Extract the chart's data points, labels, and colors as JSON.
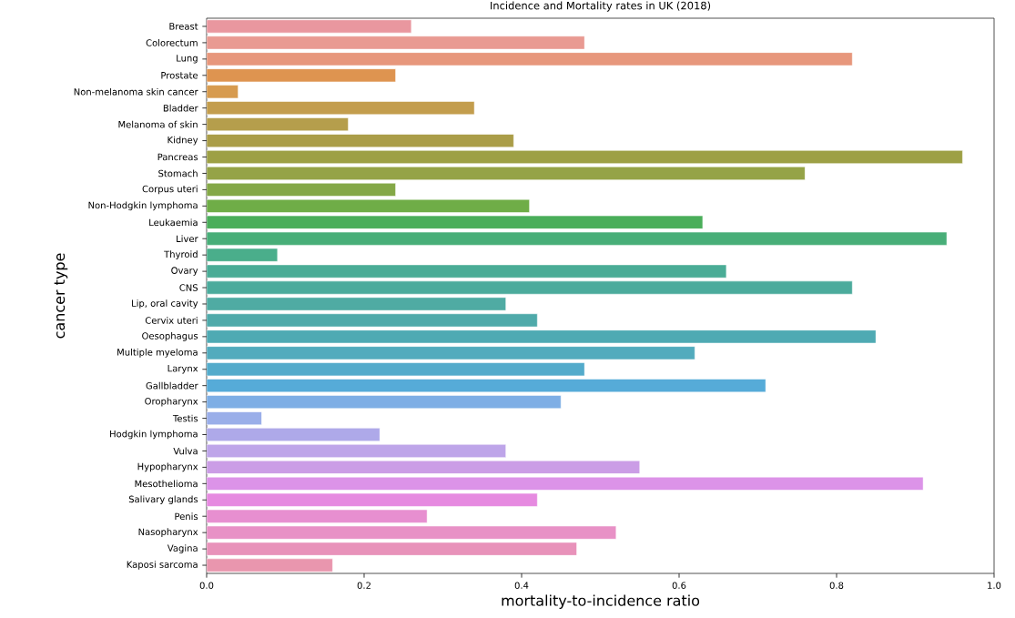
{
  "chart_data": {
    "type": "bar",
    "orientation": "horizontal",
    "title": "Incidence and Mortality rates in UK (2018)",
    "xlabel": "mortality-to-incidence ratio",
    "ylabel": "cancer type",
    "categories": [
      "Breast",
      "Colorectum",
      "Lung",
      "Prostate",
      "Non-melanoma skin cancer",
      "Bladder",
      "Melanoma of skin",
      "Kidney",
      "Pancreas",
      "Stomach",
      "Corpus uteri",
      "Non-Hodgkin lymphoma",
      "Leukaemia",
      "Liver",
      "Thyroid",
      "Ovary",
      "CNS",
      "Lip, oral cavity",
      "Cervix uteri",
      "Oesophagus",
      "Multiple myeloma",
      "Larynx",
      "Gallbladder",
      "Oropharynx",
      "Testis",
      "Hodgkin lymphoma",
      "Vulva",
      "Hypopharynx",
      "Mesothelioma",
      "Salivary glands",
      "Penis",
      "Nasopharynx",
      "Vagina",
      "Kaposi sarcoma"
    ],
    "values": [
      0.26,
      0.48,
      0.82,
      0.24,
      0.04,
      0.34,
      0.18,
      0.39,
      0.96,
      0.76,
      0.24,
      0.41,
      0.63,
      0.94,
      0.09,
      0.66,
      0.82,
      0.38,
      0.42,
      0.85,
      0.62,
      0.48,
      0.71,
      0.45,
      0.07,
      0.22,
      0.38,
      0.55,
      0.91,
      0.42,
      0.28,
      0.52,
      0.47,
      0.16
    ],
    "colors": [
      "#e9979f",
      "#e99a92",
      "#e7977c",
      "#de9450",
      "#d79b4f",
      "#c39d4d",
      "#b59e4c",
      "#aa9d48",
      "#9da045",
      "#95a347",
      "#84a847",
      "#6fad47",
      "#4aae5a",
      "#48ae78",
      "#4aae8b",
      "#4aac96",
      "#4bab9c",
      "#4faba3",
      "#4faaaa",
      "#4faab3",
      "#52abbd",
      "#53abcb",
      "#56abd8",
      "#7eaee5",
      "#9aaee9",
      "#aea9e9",
      "#bea5e9",
      "#cb9de6",
      "#dc93e8",
      "#e68ae0",
      "#e78fd0",
      "#e891c6",
      "#e892ba",
      "#e996ae"
    ],
    "xlim": [
      0,
      1.0
    ],
    "xticks": [
      {
        "value": 0,
        "label": "0.0"
      },
      0.2,
      0.4,
      0.6,
      0.8,
      {
        "value": 1.0,
        "label": "1.0"
      }
    ]
  }
}
